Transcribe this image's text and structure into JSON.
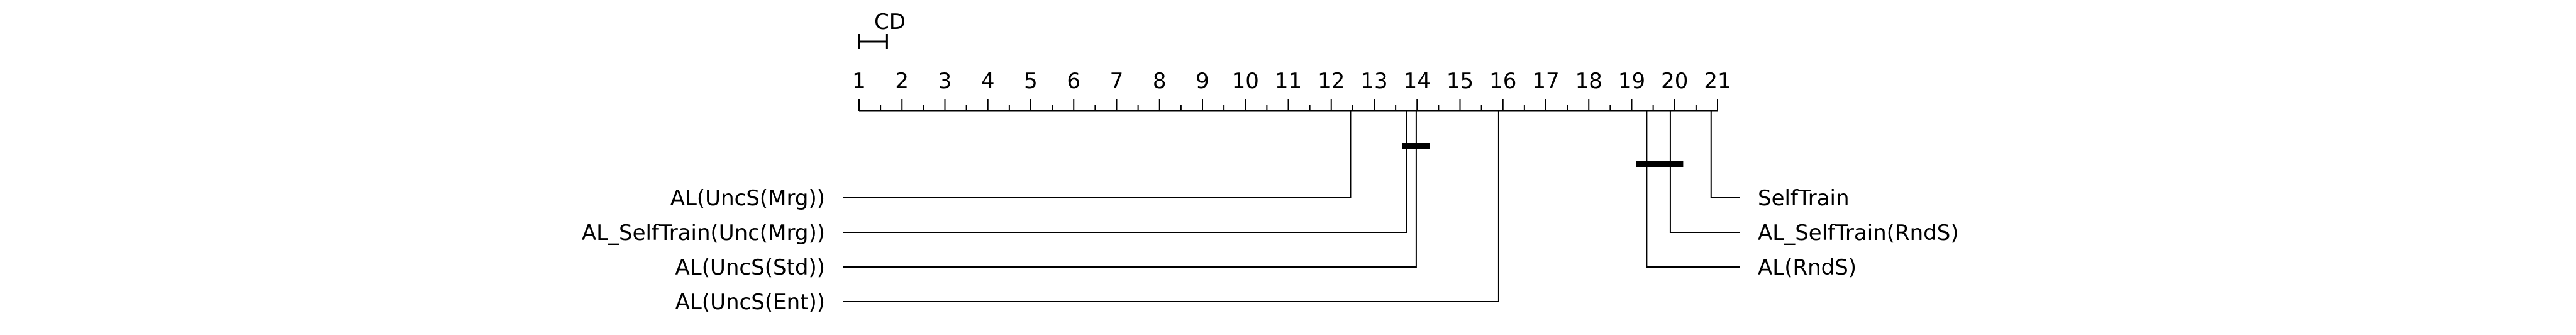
{
  "chart_data": {
    "type": "critical-difference-diagram",
    "axis": {
      "min": 1,
      "max": 21,
      "ticks": [
        "1",
        "2",
        "3",
        "4",
        "5",
        "6",
        "7",
        "8",
        "9",
        "10",
        "11",
        "12",
        "13",
        "14",
        "15",
        "16",
        "17",
        "18",
        "19",
        "20",
        "21"
      ]
    },
    "cd_label": "CD",
    "cd_value": 0.65,
    "methods_left": [
      {
        "label": "AL(UncS(Mrg))",
        "avg_rank": 12.45
      },
      {
        "label": "AL_SelfTrain(Unc(Mrg))",
        "avg_rank": 13.75
      },
      {
        "label": "AL(UncS(Std))",
        "avg_rank": 13.98
      },
      {
        "label": "AL(UncS(Ent))",
        "avg_rank": 15.9
      }
    ],
    "methods_right": [
      {
        "label": "SelfTrain",
        "avg_rank": 20.85
      },
      {
        "label": "AL_SelfTrain(RndS)",
        "avg_rank": 19.9
      },
      {
        "label": "AL(RndS)",
        "avg_rank": 19.35
      }
    ],
    "cliques": [
      {
        "from": 13.65,
        "to": 14.3
      },
      {
        "from": 19.1,
        "to": 20.2
      }
    ]
  }
}
